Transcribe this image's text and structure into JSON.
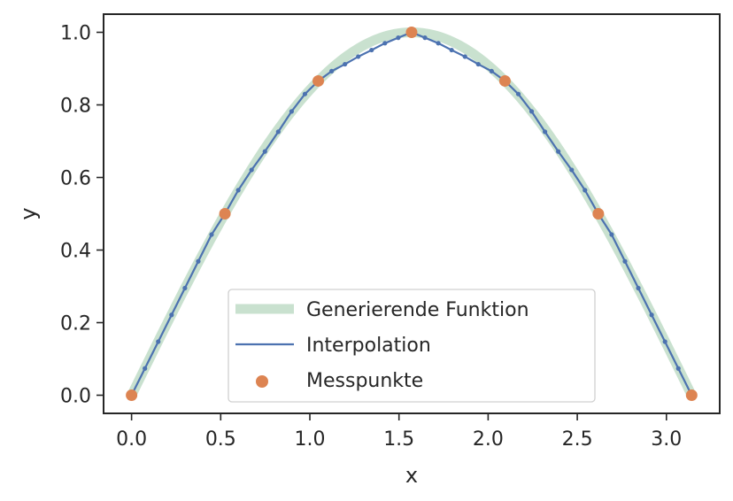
{
  "chart_data": {
    "type": "line",
    "title": "",
    "xlabel": "x",
    "ylabel": "y",
    "xlim": [
      -0.157,
      3.299
    ],
    "ylim": [
      -0.05,
      1.05
    ],
    "xticks": [
      0.0,
      0.5,
      1.0,
      1.5,
      2.0,
      2.5,
      3.0
    ],
    "xtick_labels": [
      "0.0",
      "0.5",
      "1.0",
      "1.5",
      "2.0",
      "2.5",
      "3.0"
    ],
    "yticks": [
      0.0,
      0.2,
      0.4,
      0.6,
      0.8,
      1.0
    ],
    "ytick_labels": [
      "0.0",
      "0.2",
      "0.4",
      "0.6",
      "0.8",
      "1.0"
    ],
    "grid": false,
    "legend_position": "lower-center",
    "series": [
      {
        "name": "Generierende Funktion",
        "kind": "line",
        "function": "sin(x)",
        "x_range": [
          0,
          3.14159
        ],
        "color": "#c9e1cf"
      },
      {
        "name": "Interpolation",
        "kind": "line-with-markers",
        "color": "#4c72b0",
        "x": [
          0.0,
          0.0748,
          0.1496,
          0.2244,
          0.2992,
          0.374,
          0.4488,
          0.5236,
          0.5984,
          0.6732,
          0.748,
          0.8228,
          0.8976,
          0.9724,
          1.0472,
          1.122,
          1.1968,
          1.2716,
          1.3464,
          1.4212,
          1.496,
          1.5708,
          1.6456,
          1.7204,
          1.7952,
          1.87,
          1.9448,
          2.0196,
          2.0944,
          2.1692,
          2.244,
          2.3188,
          2.3936,
          2.4684,
          2.5432,
          2.618,
          2.6928,
          2.7676,
          2.8424,
          2.9172,
          2.992,
          3.0668,
          3.1416
        ],
        "y": [
          0.0,
          0.0738,
          0.1475,
          0.2213,
          0.2951,
          0.3689,
          0.4426,
          0.5,
          0.5649,
          0.6208,
          0.6717,
          0.7259,
          0.782,
          0.83,
          0.866,
          0.8929,
          0.912,
          0.933,
          0.9511,
          0.97,
          0.985,
          1.0,
          0.985,
          0.97,
          0.9511,
          0.933,
          0.912,
          0.8929,
          0.866,
          0.83,
          0.782,
          0.7259,
          0.6717,
          0.6208,
          0.5649,
          0.5,
          0.4426,
          0.3689,
          0.2951,
          0.2213,
          0.1475,
          0.0738,
          0.0
        ]
      },
      {
        "name": "Messpunkte",
        "kind": "scatter",
        "color": "#dd8452",
        "x": [
          0.0,
          0.5236,
          1.0472,
          1.5708,
          2.0944,
          2.618,
          3.1416
        ],
        "y": [
          0.0,
          0.5,
          0.866,
          1.0,
          0.866,
          0.5,
          0.0
        ]
      }
    ]
  }
}
